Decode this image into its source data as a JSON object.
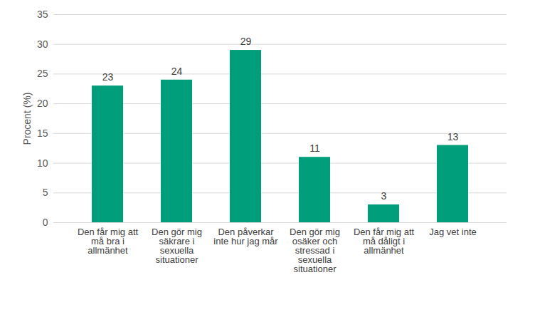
{
  "chart_data": {
    "type": "bar",
    "categories": [
      "Den får mig att må bra i allmänhet",
      "Den gör mig säkrare i sexuella situationer",
      "Den påverkar inte hur jag mår",
      "Den gör mig osäker och stressad i sexuella situationer",
      "Den får mig att må dåligt i allmänhet",
      "Jag vet inte"
    ],
    "values": [
      23,
      24,
      29,
      11,
      3,
      13
    ],
    "color": "#009e7a",
    "y_label": "Procent (%)",
    "ylim": [
      0,
      35
    ],
    "yticks": [
      0,
      5,
      10,
      15,
      20,
      25,
      30,
      35
    ],
    "grid": true,
    "data_labels": true
  }
}
